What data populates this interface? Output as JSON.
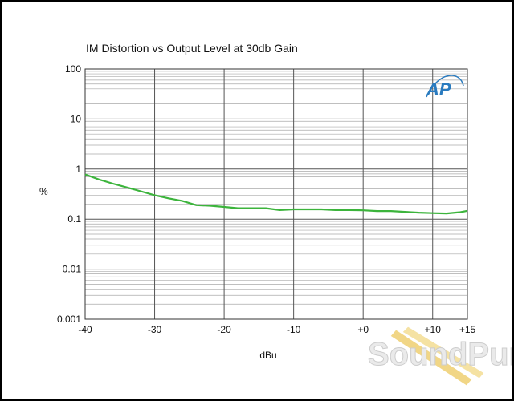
{
  "chart_data": {
    "type": "line",
    "title": "IM Distortion vs Output Level at 30db Gain",
    "xlabel": "dBu",
    "ylabel": "%",
    "x_scale": "linear",
    "y_scale": "log",
    "xlim": [
      -40,
      15
    ],
    "ylim": [
      0.001,
      100
    ],
    "x_ticks": [
      -40,
      -30,
      -20,
      -10,
      0,
      10,
      15
    ],
    "x_tick_labels": [
      "-40",
      "-30",
      "-20",
      "-10",
      "+0",
      "+10",
      "+15"
    ],
    "y_ticks": [
      0.001,
      0.01,
      0.1,
      1,
      10,
      100
    ],
    "y_tick_labels": [
      "0.001",
      "0.01",
      "0.1",
      "1",
      "10",
      "100"
    ],
    "grid": true,
    "series": [
      {
        "color": "#3cb43c",
        "x": [
          -40,
          -38,
          -36,
          -34,
          -32,
          -30,
          -28,
          -26,
          -24,
          -22,
          -20,
          -18,
          -16,
          -14,
          -12,
          -10,
          -8,
          -6,
          -4,
          -2,
          0,
          2,
          4,
          6,
          8,
          10,
          12,
          14,
          15
        ],
        "y": [
          0.78,
          0.62,
          0.51,
          0.43,
          0.36,
          0.3,
          0.26,
          0.23,
          0.19,
          0.185,
          0.175,
          0.165,
          0.165,
          0.165,
          0.152,
          0.157,
          0.157,
          0.157,
          0.152,
          0.152,
          0.15,
          0.145,
          0.145,
          0.14,
          0.135,
          0.132,
          0.13,
          0.138,
          0.147
        ]
      }
    ]
  },
  "logo_text": "AP",
  "watermark_text": "SoundPure",
  "colors": {
    "frame_border": "#000000",
    "grid_major": "#555555",
    "grid_minor": "#aaaaaa",
    "line": "#3cb43c",
    "logo": "#2a7bbf",
    "watermark_stripe": "#f0d27a"
  }
}
